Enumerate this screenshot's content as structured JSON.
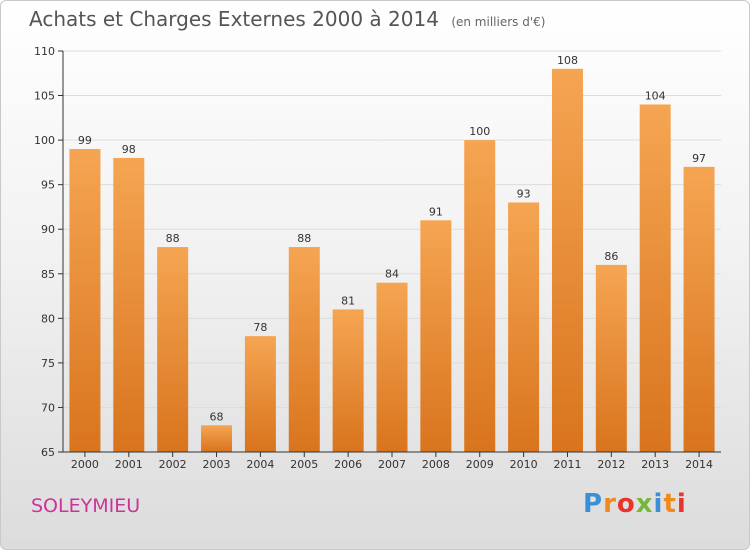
{
  "title": "Achats et Charges Externes 2000 à 2014",
  "unit": "(en milliers d'€)",
  "commune": "SOLEYMIEU",
  "logo": [
    "P",
    "r",
    "o",
    "x",
    "i",
    "t",
    "i"
  ],
  "colors": {
    "bar_top": "#f5a552",
    "bar_bottom": "#d9741e",
    "grid": "#dddddd",
    "axis": "#333333"
  },
  "chart_data": {
    "type": "bar",
    "categories": [
      "2000",
      "2001",
      "2002",
      "2003",
      "2004",
      "2005",
      "2006",
      "2007",
      "2008",
      "2009",
      "2010",
      "2011",
      "2012",
      "2013",
      "2014"
    ],
    "values": [
      99,
      98,
      88,
      68,
      78,
      88,
      81,
      84,
      91,
      100,
      93,
      108,
      86,
      104,
      97
    ],
    "ylim": [
      65,
      110
    ],
    "yticks": [
      65,
      70,
      75,
      80,
      85,
      90,
      95,
      100,
      105,
      110
    ],
    "grid": true,
    "title": "Achats et Charges Externes 2000 à 2014",
    "xlabel": "",
    "ylabel": ""
  }
}
